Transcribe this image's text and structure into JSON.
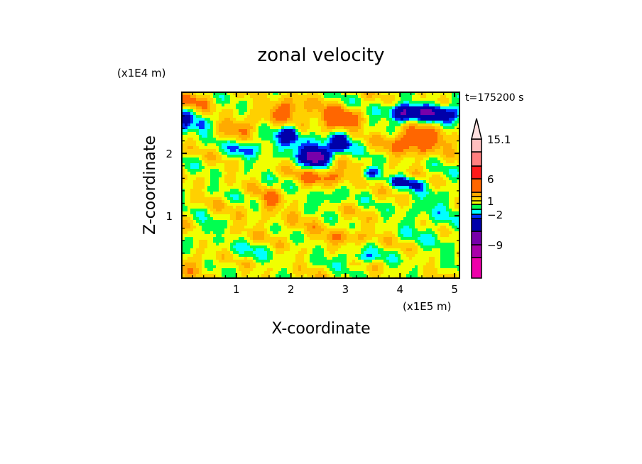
{
  "chart_data": {
    "type": "heatmap",
    "subtype": "filled-contour",
    "title": "zonal velocity",
    "xlabel": "X-coordinate",
    "ylabel": "Z-coordinate",
    "x_scale_label": "(x1E5 m)",
    "y_scale_label": "(x1E4 m)",
    "time_label": "t=175200 s",
    "xlim": [
      0,
      5.09
    ],
    "ylim": [
      0,
      2.98
    ],
    "x_ticks": [
      1,
      2,
      3,
      4,
      5
    ],
    "x_tick_labels": [
      "1",
      "2",
      "3",
      "4",
      "5"
    ],
    "y_ticks": [
      1,
      2
    ],
    "y_tick_labels": [
      "1",
      "2"
    ],
    "minor_tick_step": 0.2,
    "colorbar": {
      "levels": [
        -12,
        -9,
        -6,
        -3,
        -2,
        -1,
        0,
        1,
        2,
        3,
        6,
        9,
        12,
        15.1
      ],
      "colors": [
        "#ee00aa",
        "#aa00aa",
        "#7700aa",
        "#0000aa",
        "#0030ff",
        "#00ffff",
        "#00ff50",
        "#f0ff00",
        "#ffd000",
        "#ffaa00",
        "#ff6600",
        "#ff1a1a",
        "#ff7f7f",
        "#ffbfbf",
        "#ffe0e0"
      ],
      "labeled_levels": [
        15.1,
        6,
        1,
        -2,
        -9
      ],
      "labels": [
        "15.1",
        "6",
        "1",
        "−2",
        "−9"
      ],
      "extend": "max"
    },
    "field": {
      "baseline": 0.6,
      "features": [
        {
          "x": 2.47,
          "z": 1.95,
          "sx": 0.18,
          "sz": 0.11,
          "amp": -8.5
        },
        {
          "x": 1.97,
          "z": 2.32,
          "sx": 0.12,
          "sz": 0.09,
          "amp": -4.5
        },
        {
          "x": 2.92,
          "z": 2.18,
          "sx": 0.12,
          "sz": 0.1,
          "amp": -4.5
        },
        {
          "x": 4.5,
          "z": 2.65,
          "sx": 0.55,
          "sz": 0.09,
          "amp": -6.0
        },
        {
          "x": 4.05,
          "z": 2.6,
          "sx": 0.1,
          "sz": 0.1,
          "amp": -3.0
        },
        {
          "x": 3.44,
          "z": 1.69,
          "sx": 0.12,
          "sz": 0.07,
          "amp": -4.0
        },
        {
          "x": 4.0,
          "z": 1.55,
          "sx": 0.15,
          "sz": 0.05,
          "amp": -3.5
        },
        {
          "x": 4.3,
          "z": 1.5,
          "sx": 0.1,
          "sz": 0.05,
          "amp": -3.5
        },
        {
          "x": 2.2,
          "z": 2.15,
          "sx": 0.6,
          "sz": 0.15,
          "amp": -1.8
        },
        {
          "x": 2.86,
          "z": 2.55,
          "sx": 0.3,
          "sz": 0.12,
          "amp": 4.5
        },
        {
          "x": 1.95,
          "z": 2.7,
          "sx": 0.25,
          "sz": 0.12,
          "amp": 3.5
        },
        {
          "x": 4.3,
          "z": 2.2,
          "sx": 0.35,
          "sz": 0.14,
          "amp": 4.5
        },
        {
          "x": 2.66,
          "z": 1.65,
          "sx": 0.35,
          "sz": 0.1,
          "amp": 3.2
        },
        {
          "x": 0.05,
          "z": 2.5,
          "sx": 0.1,
          "sz": 0.12,
          "amp": -3.5
        },
        {
          "x": 0.35,
          "z": 2.45,
          "sx": 0.1,
          "sz": 0.1,
          "amp": -3.0
        },
        {
          "x": 1.17,
          "z": 2.08,
          "sx": 0.22,
          "sz": 0.08,
          "amp": -2.2
        },
        {
          "x": 2.66,
          "z": 1.27,
          "sx": 0.2,
          "sz": 0.1,
          "amp": -2.2
        },
        {
          "x": 0.45,
          "z": 0.78,
          "sx": 0.1,
          "sz": 0.1,
          "amp": -2.2
        },
        {
          "x": 3.3,
          "z": 0.33,
          "sx": 0.2,
          "sz": 0.05,
          "amp": -2.0
        },
        {
          "x": 1.1,
          "z": 2.43,
          "sx": 0.25,
          "sz": 0.1,
          "amp": 2.5
        },
        {
          "x": 1.6,
          "z": 1.24,
          "sx": 0.15,
          "sz": 0.12,
          "amp": 2.2
        },
        {
          "x": 0.2,
          "z": 2.85,
          "sx": 0.25,
          "sz": 0.1,
          "amp": 2.0
        },
        {
          "x": 2.0,
          "z": 0.7,
          "sx": 1.0,
          "sz": 0.35,
          "amp": 0.6
        },
        {
          "x": 1.2,
          "z": 0.45,
          "sx": 0.6,
          "sz": 0.12,
          "amp": -1.2
        },
        {
          "x": 3.0,
          "z": 0.35,
          "sx": 0.5,
          "sz": 0.1,
          "amp": -1.0
        },
        {
          "x": 4.6,
          "z": 1.0,
          "sx": 0.45,
          "sz": 0.4,
          "amp": -1.2
        },
        {
          "x": 0.2,
          "z": 0.25,
          "sx": 0.25,
          "sz": 0.1,
          "amp": 1.8
        },
        {
          "x": 3.05,
          "z": 0.65,
          "sx": 0.25,
          "sz": 0.08,
          "amp": 1.8
        }
      ],
      "waves": [
        {
          "kx": 5.5,
          "kz": 9.0,
          "amp": 0.9
        },
        {
          "kx": 13.0,
          "kz": -6.0,
          "amp": 0.6
        },
        {
          "kx": 3.0,
          "kz": 16.0,
          "amp": 0.5
        }
      ]
    }
  }
}
